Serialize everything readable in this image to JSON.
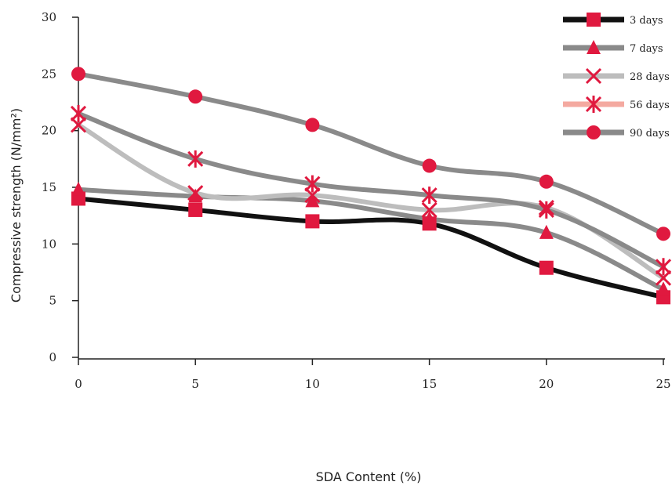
{
  "chart_data": {
    "type": "line",
    "xlabel": "SDA Content (%)",
    "ylabel": "Compressive strength (N/mm²)",
    "x": [
      0,
      5,
      10,
      15,
      20,
      25
    ],
    "x_ticks": [
      "0",
      "5",
      "10",
      "15",
      "20",
      "25"
    ],
    "y_ticks": [
      "0",
      "5",
      "10",
      "15",
      "20",
      "25",
      "30"
    ],
    "xlim": [
      0,
      25
    ],
    "ylim": [
      0,
      30
    ],
    "grid": false,
    "legend_position": "top-right",
    "marker_color": "#e0193f",
    "series": [
      {
        "name": "3 days",
        "values": [
          14.0,
          13.0,
          12.0,
          11.8,
          7.9,
          5.3
        ],
        "line_color": "#111111",
        "marker": "square"
      },
      {
        "name": "7 days",
        "values": [
          14.8,
          14.2,
          13.8,
          12.2,
          11.0,
          6.0
        ],
        "line_color": "#8a8a8a",
        "marker": "triangle"
      },
      {
        "name": "28 days",
        "values": [
          20.5,
          14.5,
          14.3,
          13.0,
          13.2,
          7.0
        ],
        "line_color": "#bdbdbd",
        "marker": "x"
      },
      {
        "name": "56 days",
        "values": [
          21.5,
          17.5,
          15.3,
          14.3,
          13.0,
          8.0
        ],
        "line_color": "#8a8a8a",
        "legend_color": "#f4a9a0",
        "marker": "asterisk"
      },
      {
        "name": "90 days",
        "values": [
          25.0,
          23.0,
          20.5,
          16.9,
          15.5,
          10.9
        ],
        "line_color": "#8a8a8a",
        "marker": "circle"
      }
    ]
  }
}
